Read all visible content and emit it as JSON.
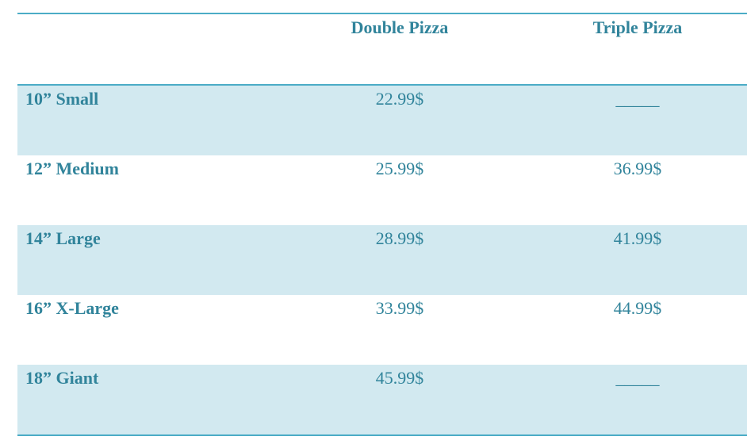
{
  "table": {
    "header": [
      "",
      "Double Pizza",
      "Triple Pizza"
    ],
    "rows": [
      [
        "10” Small",
        "22.99$",
        "_____"
      ],
      [
        "12” Medium",
        "25.99$",
        "36.99$"
      ],
      [
        "14” Large",
        "28.99$",
        "41.99$"
      ],
      [
        "16” X-Large",
        "33.99$",
        "44.99$"
      ],
      [
        "18” Giant",
        "45.99$",
        "_____"
      ]
    ]
  }
}
